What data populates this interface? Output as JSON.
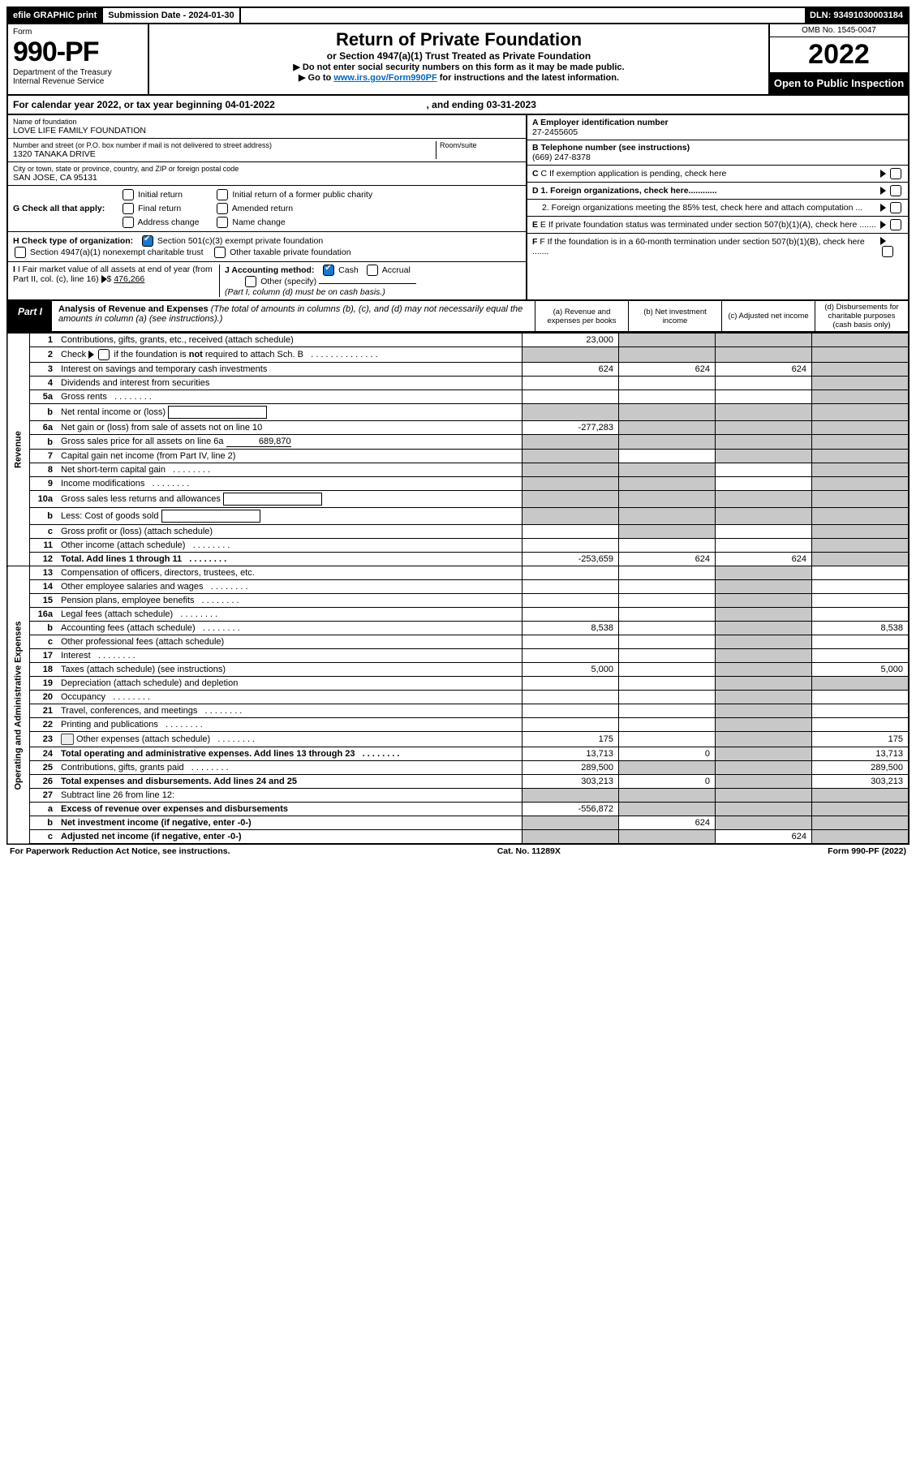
{
  "top": {
    "efile": "efile GRAPHIC print",
    "sub_label": "Submission Date - 2024-01-30",
    "dln": "DLN: 93491030003184"
  },
  "header": {
    "form_word": "Form",
    "form_no": "990-PF",
    "dept": "Department of the Treasury",
    "irs": "Internal Revenue Service",
    "title": "Return of Private Foundation",
    "subtitle": "or Section 4947(a)(1) Trust Treated as Private Foundation",
    "instr1": "▶ Do not enter social security numbers on this form as it may be made public.",
    "instr2_pre": "▶ Go to ",
    "instr2_link": "www.irs.gov/Form990PF",
    "instr2_post": " for instructions and the latest information.",
    "omb": "OMB No. 1545-0047",
    "year": "2022",
    "open": "Open to Public Inspection"
  },
  "cal": {
    "prefix": "For calendar year 2022, or tax year beginning 04-01-2022",
    "mid": ", and ending 03-31-2023"
  },
  "id": {
    "name_label": "Name of foundation",
    "name": "LOVE LIFE FAMILY FOUNDATION",
    "addr_label": "Number and street (or P.O. box number if mail is not delivered to street address)",
    "addr": "1320 TANAKA DRIVE",
    "room_label": "Room/suite",
    "city_label": "City or town, state or province, country, and ZIP or foreign postal code",
    "city": "SAN JOSE, CA  95131",
    "a_label": "A Employer identification number",
    "a_val": "27-2455605",
    "b_label": "B Telephone number (see instructions)",
    "b_val": "(669) 247-8378",
    "c_label": "C If exemption application is pending, check here",
    "d1": "D 1. Foreign organizations, check here............",
    "d2": "2. Foreign organizations meeting the 85% test, check here and attach computation ...",
    "e": "E  If private foundation status was terminated under section 507(b)(1)(A), check here .......",
    "f": "F  If the foundation is in a 60-month termination under section 507(b)(1)(B), check here .......",
    "g_label": "G Check all that apply:",
    "g_opts": [
      "Initial return",
      "Final return",
      "Address change",
      "Initial return of a former public charity",
      "Amended return",
      "Name change"
    ],
    "h_label": "H Check type of organization:",
    "h_opts": [
      "Section 501(c)(3) exempt private foundation",
      "Section 4947(a)(1) nonexempt charitable trust",
      "Other taxable private foundation"
    ],
    "i_label": "I Fair market value of all assets at end of year (from Part II, col. (c), line 16)",
    "i_val": "476,266",
    "j_label": "J Accounting method:",
    "j_opts": [
      "Cash",
      "Accrual",
      "Other (specify)"
    ],
    "j_note": "(Part I, column (d) must be on cash basis.)"
  },
  "part1": {
    "label": "Part I",
    "title": "Analysis of Revenue and Expenses",
    "title_note": " (The total of amounts in columns (b), (c), and (d) may not necessarily equal the amounts in column (a) (see instructions).)",
    "col_a": "(a)   Revenue and expenses per books",
    "col_b": "(b)   Net investment income",
    "col_c": "(c)   Adjusted net income",
    "col_d": "(d)   Disbursements for charitable purposes (cash basis only)"
  },
  "side": {
    "revenue": "Revenue",
    "expenses": "Operating and Administrative Expenses"
  },
  "rows": [
    {
      "n": "1",
      "d": "Contributions, gifts, grants, etc., received (attach schedule)",
      "a": "23,000",
      "b": "",
      "c": "",
      "dd": "",
      "grey": [
        "b",
        "c",
        "dd"
      ]
    },
    {
      "n": "2",
      "d": "Check ▶ ☐ if the foundation is not required to attach Sch. B",
      "plain": true,
      "grey": [
        "a",
        "b",
        "c",
        "dd"
      ]
    },
    {
      "n": "3",
      "d": "Interest on savings and temporary cash investments",
      "a": "624",
      "b": "624",
      "c": "624",
      "dd": "",
      "grey": [
        "dd"
      ]
    },
    {
      "n": "4",
      "d": "Dividends and interest from securities",
      "grey": [
        "dd"
      ]
    },
    {
      "n": "5a",
      "d": "Gross rents",
      "dots": true,
      "grey": [
        "dd"
      ]
    },
    {
      "n": "b",
      "d": "Net rental income or (loss)",
      "inline_box": true,
      "grey": [
        "a",
        "b",
        "c",
        "dd"
      ]
    },
    {
      "n": "6a",
      "d": "Net gain or (loss) from sale of assets not on line 10",
      "a": "-277,283",
      "grey": [
        "b",
        "c",
        "dd"
      ]
    },
    {
      "n": "b",
      "d": "Gross sales price for all assets on line 6a",
      "inline_val": "689,870",
      "grey": [
        "a",
        "b",
        "c",
        "dd"
      ]
    },
    {
      "n": "7",
      "d": "Capital gain net income (from Part IV, line 2)",
      "grey": [
        "a",
        "c",
        "dd"
      ]
    },
    {
      "n": "8",
      "d": "Net short-term capital gain",
      "dots": true,
      "grey": [
        "a",
        "b",
        "dd"
      ]
    },
    {
      "n": "9",
      "d": "Income modifications",
      "dots": true,
      "grey": [
        "a",
        "b",
        "dd"
      ]
    },
    {
      "n": "10a",
      "d": "Gross sales less returns and allowances",
      "inline_box": true,
      "grey": [
        "a",
        "b",
        "c",
        "dd"
      ]
    },
    {
      "n": "b",
      "d": "Less: Cost of goods sold",
      "inline_box": true,
      "grey": [
        "a",
        "b",
        "c",
        "dd"
      ]
    },
    {
      "n": "c",
      "d": "Gross profit or (loss) (attach schedule)",
      "grey": [
        "b",
        "dd"
      ]
    },
    {
      "n": "11",
      "d": "Other income (attach schedule)",
      "dots": true,
      "grey": [
        "dd"
      ]
    },
    {
      "n": "12",
      "d": "Total. Add lines 1 through 11",
      "bold": true,
      "dots": true,
      "a": "-253,659",
      "b": "624",
      "c": "624",
      "grey": [
        "dd"
      ]
    },
    {
      "n": "13",
      "d": "Compensation of officers, directors, trustees, etc.",
      "grey": [
        "c"
      ]
    },
    {
      "n": "14",
      "d": "Other employee salaries and wages",
      "dots": true,
      "grey": [
        "c"
      ]
    },
    {
      "n": "15",
      "d": "Pension plans, employee benefits",
      "dots": true,
      "grey": [
        "c"
      ]
    },
    {
      "n": "16a",
      "d": "Legal fees (attach schedule)",
      "dots": true,
      "grey": [
        "c"
      ]
    },
    {
      "n": "b",
      "d": "Accounting fees (attach schedule)",
      "dots": true,
      "a": "8,538",
      "dd": "8,538",
      "grey": [
        "c"
      ]
    },
    {
      "n": "c",
      "d": "Other professional fees (attach schedule)",
      "grey": [
        "c"
      ]
    },
    {
      "n": "17",
      "d": "Interest",
      "dots": true,
      "grey": [
        "c"
      ]
    },
    {
      "n": "18",
      "d": "Taxes (attach schedule) (see instructions)",
      "a": "5,000",
      "dd": "5,000",
      "grey": [
        "c"
      ]
    },
    {
      "n": "19",
      "d": "Depreciation (attach schedule) and depletion",
      "grey": [
        "c",
        "dd"
      ]
    },
    {
      "n": "20",
      "d": "Occupancy",
      "dots": true,
      "grey": [
        "c"
      ]
    },
    {
      "n": "21",
      "d": "Travel, conferences, and meetings",
      "dots": true,
      "grey": [
        "c"
      ]
    },
    {
      "n": "22",
      "d": "Printing and publications",
      "dots": true,
      "grey": [
        "c"
      ]
    },
    {
      "n": "23",
      "d": "Other expenses (attach schedule)",
      "dots": true,
      "icon": true,
      "a": "175",
      "dd": "175",
      "grey": [
        "c"
      ]
    },
    {
      "n": "24",
      "d": "Total operating and administrative expenses. Add lines 13 through 23",
      "bold": true,
      "dots": true,
      "a": "13,713",
      "b": "0",
      "dd": "13,713",
      "grey": [
        "c"
      ]
    },
    {
      "n": "25",
      "d": "Contributions, gifts, grants paid",
      "dots": true,
      "a": "289,500",
      "dd": "289,500",
      "grey": [
        "b",
        "c"
      ]
    },
    {
      "n": "26",
      "d": "Total expenses and disbursements. Add lines 24 and 25",
      "bold": true,
      "a": "303,213",
      "b": "0",
      "dd": "303,213",
      "grey": [
        "c"
      ]
    },
    {
      "n": "27",
      "d": "Subtract line 26 from line 12:",
      "grey": [
        "a",
        "b",
        "c",
        "dd"
      ]
    },
    {
      "n": "a",
      "d": "Excess of revenue over expenses and disbursements",
      "bold": true,
      "a": "-556,872",
      "grey": [
        "b",
        "c",
        "dd"
      ]
    },
    {
      "n": "b",
      "d": "Net investment income (if negative, enter -0-)",
      "bold": true,
      "b": "624",
      "grey": [
        "a",
        "c",
        "dd"
      ]
    },
    {
      "n": "c",
      "d": "Adjusted net income (if negative, enter -0-)",
      "bold": true,
      "c": "624",
      "grey": [
        "a",
        "b",
        "dd"
      ]
    }
  ],
  "footer": {
    "left": "For Paperwork Reduction Act Notice, see instructions.",
    "mid": "Cat. No. 11289X",
    "right": "Form 990-PF (2022)"
  },
  "colors": {
    "grey_cell": "#c8c8c8",
    "link": "#0066cc",
    "check_blue": "#1976d2"
  }
}
